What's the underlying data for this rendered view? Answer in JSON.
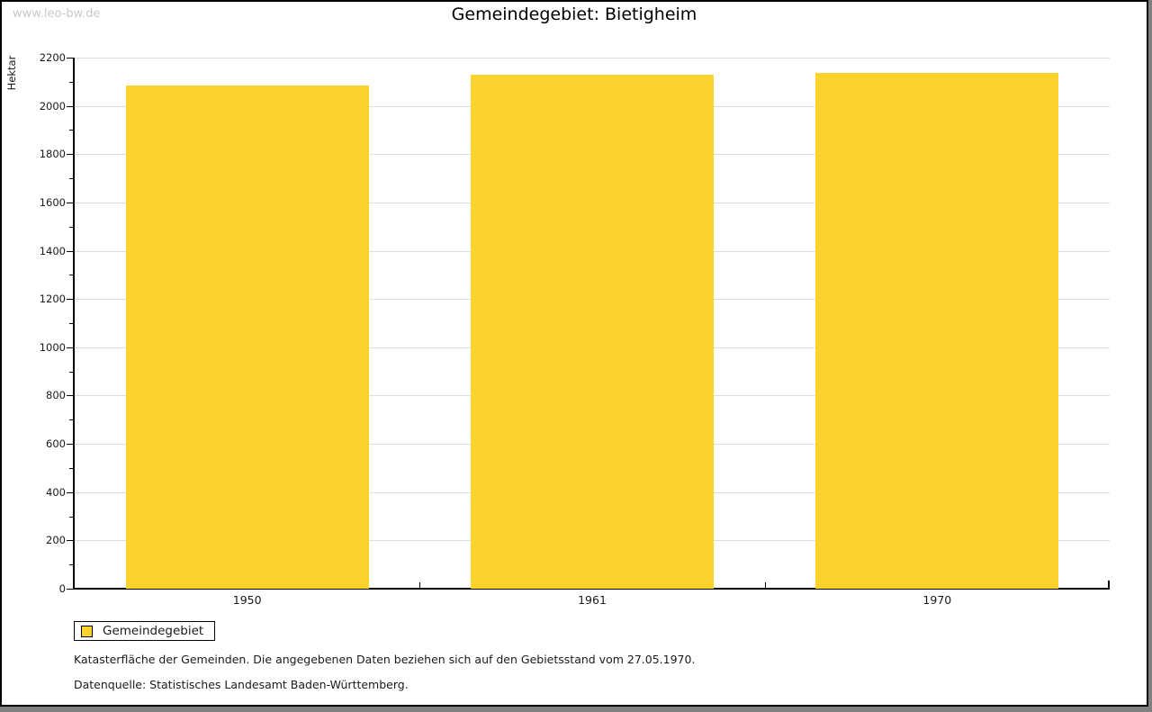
{
  "watermark": "www.leo-bw.de",
  "chart_data": {
    "type": "bar",
    "title": "Gemeindegebiet: Bietigheim",
    "ylabel": "Hektar",
    "xlabel": "",
    "categories": [
      "1950",
      "1961",
      "1970"
    ],
    "series": [
      {
        "name": "Gemeindegebiet",
        "values": [
          2083,
          2128,
          2136
        ],
        "color": "#FCD32C"
      }
    ],
    "ylim": [
      0,
      2200
    ],
    "y_major_step": 200,
    "y_minor_step": 100,
    "grid": "horizontal-major-only",
    "legend_position": "bottom-left"
  },
  "footnotes": [
    "Katasterfläche der Gemeinden. Die angegebenen Daten beziehen sich auf den Gebietsstand vom 27.05.1970.",
    "Datenquelle: Statistisches Landesamt Baden-Württemberg."
  ],
  "colors": {
    "bar": "#FCD32C",
    "grid": "#DDDDDD",
    "axis": "#000000",
    "watermark": "#C9C9C9",
    "page_shadow": "#7F7F7F"
  }
}
